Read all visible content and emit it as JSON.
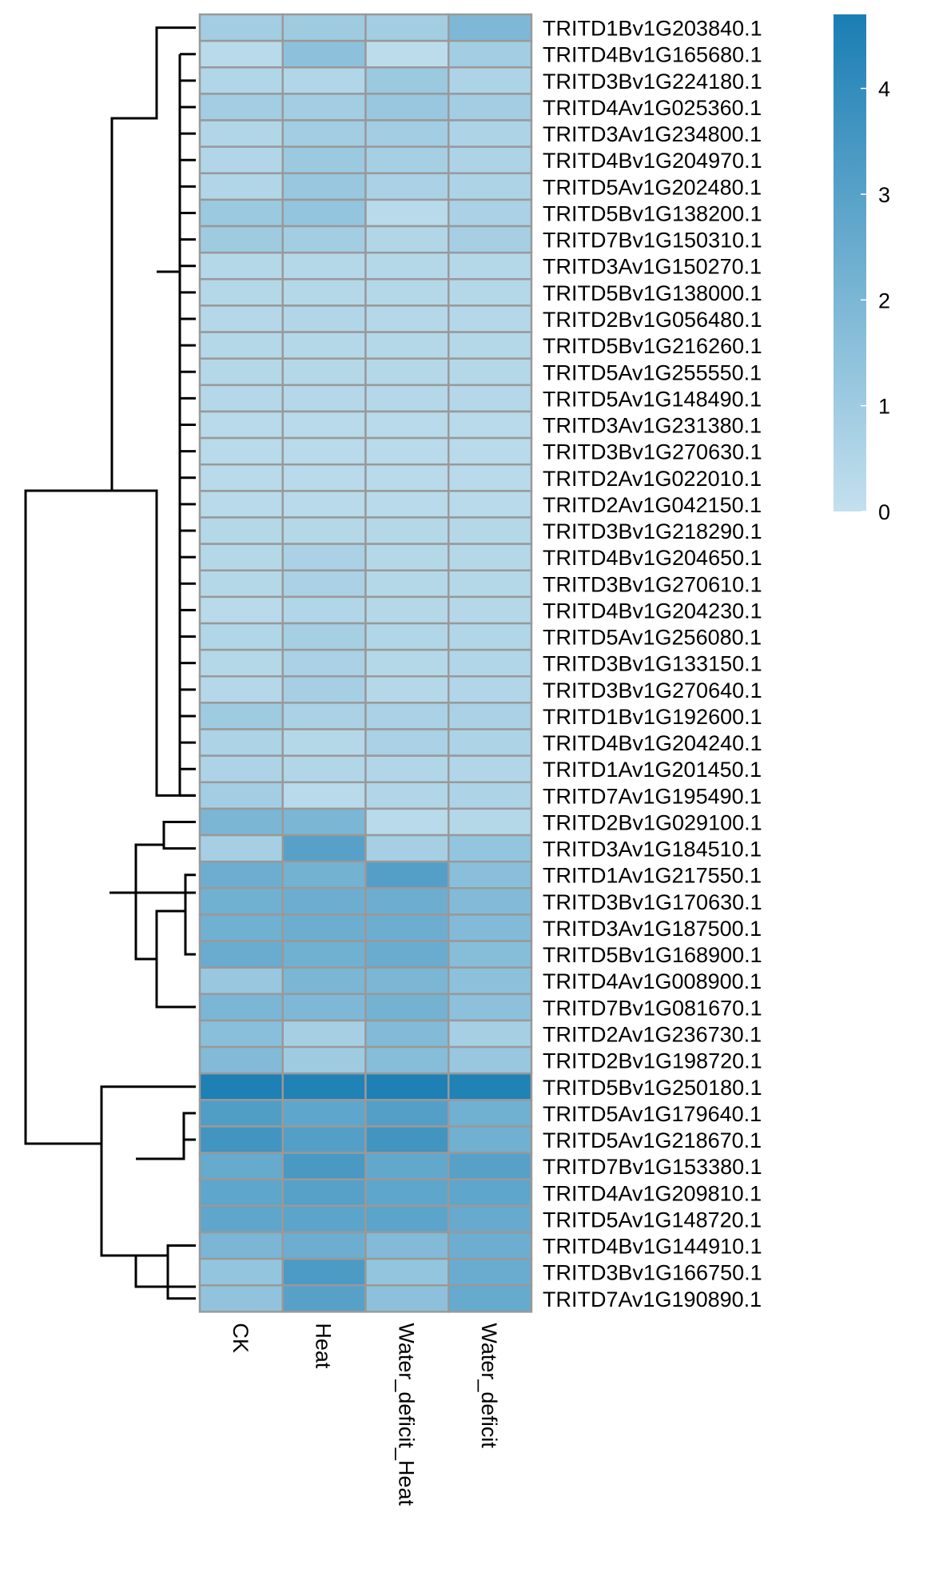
{
  "chart_data": {
    "type": "heatmap",
    "columns": [
      "CK",
      "Heat",
      "Water_deficit_Heat",
      "Water_deficit"
    ],
    "rows": [
      "TRITD1Bv1G203840.1",
      "TRITD4Bv1G165680.1",
      "TRITD3Bv1G224180.1",
      "TRITD4Av1G025360.1",
      "TRITD3Av1G234800.1",
      "TRITD4Bv1G204970.1",
      "TRITD5Av1G202480.1",
      "TRITD5Bv1G138200.1",
      "TRITD7Bv1G150310.1",
      "TRITD3Av1G150270.1",
      "TRITD5Bv1G138000.1",
      "TRITD2Bv1G056480.1",
      "TRITD5Bv1G216260.1",
      "TRITD5Av1G255550.1",
      "TRITD5Av1G148490.1",
      "TRITD3Av1G231380.1",
      "TRITD3Bv1G270630.1",
      "TRITD2Av1G022010.1",
      "TRITD2Av1G042150.1",
      "TRITD3Bv1G218290.1",
      "TRITD4Bv1G204650.1",
      "TRITD3Bv1G270610.1",
      "TRITD4Bv1G204230.1",
      "TRITD5Av1G256080.1",
      "TRITD3Bv1G133150.1",
      "TRITD3Bv1G270640.1",
      "TRITD1Bv1G192600.1",
      "TRITD4Bv1G204240.1",
      "TRITD1Av1G201450.1",
      "TRITD7Av1G195490.1",
      "TRITD2Bv1G029100.1",
      "TRITD3Av1G184510.1",
      "TRITD1Av1G217550.1",
      "TRITD3Bv1G170630.1",
      "TRITD3Av1G187500.1",
      "TRITD5Bv1G168900.1",
      "TRITD4Av1G008900.1",
      "TRITD7Bv1G081670.1",
      "TRITD2Av1G236730.1",
      "TRITD2Bv1G198720.1",
      "TRITD5Bv1G250180.1",
      "TRITD5Av1G179640.1",
      "TRITD5Av1G218670.1",
      "TRITD7Bv1G153380.1",
      "TRITD4Av1G209810.1",
      "TRITD5Av1G148720.1",
      "TRITD4Bv1G144910.1",
      "TRITD3Bv1G166750.1",
      "TRITD7Av1G190890.1"
    ],
    "values": [
      [
        0.9,
        1.0,
        0.9,
        1.9
      ],
      [
        0.3,
        1.5,
        0.2,
        0.9
      ],
      [
        0.5,
        0.5,
        1.1,
        0.6
      ],
      [
        0.9,
        0.9,
        1.2,
        0.9
      ],
      [
        0.5,
        0.9,
        0.9,
        0.6
      ],
      [
        0.5,
        1.1,
        0.8,
        0.6
      ],
      [
        0.5,
        1.2,
        0.7,
        0.6
      ],
      [
        1.1,
        1.3,
        0.3,
        0.7
      ],
      [
        1.0,
        0.9,
        0.5,
        0.8
      ],
      [
        0.4,
        0.4,
        0.4,
        0.4
      ],
      [
        0.4,
        0.4,
        0.4,
        0.4
      ],
      [
        0.4,
        0.5,
        0.4,
        0.4
      ],
      [
        0.4,
        0.4,
        0.4,
        0.4
      ],
      [
        0.4,
        0.4,
        0.4,
        0.4
      ],
      [
        0.4,
        0.4,
        0.4,
        0.4
      ],
      [
        0.3,
        0.3,
        0.3,
        0.3
      ],
      [
        0.3,
        0.3,
        0.3,
        0.3
      ],
      [
        0.3,
        0.3,
        0.3,
        0.3
      ],
      [
        0.3,
        0.3,
        0.3,
        0.3
      ],
      [
        0.4,
        0.4,
        0.4,
        0.4
      ],
      [
        0.4,
        0.7,
        0.4,
        0.4
      ],
      [
        0.4,
        0.7,
        0.4,
        0.4
      ],
      [
        0.3,
        0.5,
        0.4,
        0.4
      ],
      [
        0.5,
        0.8,
        0.5,
        0.5
      ],
      [
        0.4,
        0.7,
        0.4,
        0.5
      ],
      [
        0.4,
        0.8,
        0.4,
        0.5
      ],
      [
        1.0,
        0.7,
        0.7,
        0.7
      ],
      [
        0.6,
        0.4,
        0.7,
        0.6
      ],
      [
        0.6,
        0.5,
        0.5,
        0.5
      ],
      [
        0.9,
        0.3,
        0.5,
        0.6
      ],
      [
        2.0,
        2.0,
        0.3,
        0.4
      ],
      [
        0.8,
        3.0,
        0.8,
        1.3
      ],
      [
        2.4,
        2.2,
        3.1,
        1.6
      ],
      [
        2.3,
        2.4,
        2.4,
        1.8
      ],
      [
        2.3,
        2.4,
        2.4,
        1.8
      ],
      [
        2.5,
        2.3,
        2.5,
        1.7
      ],
      [
        1.2,
        2.0,
        2.0,
        1.5
      ],
      [
        2.0,
        1.9,
        2.2,
        1.5
      ],
      [
        1.6,
        0.8,
        1.8,
        0.8
      ],
      [
        1.8,
        1.0,
        1.7,
        1.2
      ],
      [
        4.6,
        4.5,
        4.6,
        4.5
      ],
      [
        3.2,
        2.8,
        3.1,
        2.3
      ],
      [
        3.6,
        3.1,
        3.6,
        2.3
      ],
      [
        2.6,
        3.4,
        2.7,
        3.0
      ],
      [
        2.8,
        3.0,
        2.8,
        2.8
      ],
      [
        2.8,
        2.9,
        2.9,
        2.6
      ],
      [
        2.0,
        2.4,
        1.8,
        2.4
      ],
      [
        1.3,
        3.3,
        1.3,
        2.5
      ],
      [
        1.4,
        3.0,
        1.5,
        2.6
      ]
    ],
    "color_scale": {
      "min": 0,
      "max": 4.7,
      "low_color": "#c3e0ee",
      "high_color": "#1a7eb3"
    },
    "legend": {
      "position": "top-right",
      "ticks": [
        0,
        1,
        2,
        3,
        4
      ]
    },
    "cell_border_color": "#999999",
    "dendrogram": "rows"
  }
}
